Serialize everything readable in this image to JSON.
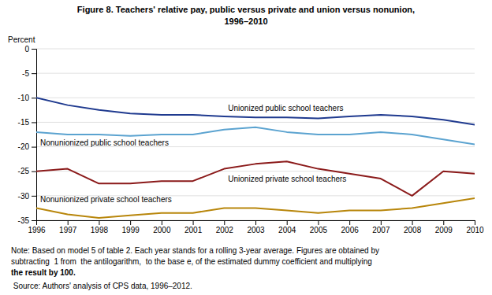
{
  "chart_data": {
    "type": "line",
    "title": [
      "Figure 8. Teachers' relative pay, public versus private and union versus nonunion,",
      "1996–2010"
    ],
    "ylabel": "Percent",
    "x": [
      1996,
      1997,
      1998,
      1999,
      2000,
      2001,
      2002,
      2003,
      2004,
      2005,
      2006,
      2007,
      2008,
      2009,
      2010
    ],
    "series": [
      {
        "name": "Unionized public school teachers",
        "color": "#1F3A8F",
        "values": [
          -10.0,
          -11.5,
          -12.5,
          -13.2,
          -13.5,
          -13.5,
          -13.8,
          -14.0,
          -14.0,
          -14.2,
          -13.8,
          -13.5,
          -13.8,
          -14.5,
          -15.5
        ]
      },
      {
        "name": "Nonunionized public school teachers",
        "color": "#5BA3D0",
        "values": [
          -17.0,
          -17.5,
          -17.5,
          -17.8,
          -17.5,
          -17.5,
          -16.5,
          -16.0,
          -17.0,
          -17.5,
          -17.5,
          -17.0,
          -17.5,
          -18.5,
          -19.5
        ]
      },
      {
        "name": "Unionized private school teachers",
        "color": "#8B1A1A",
        "values": [
          -25.0,
          -24.5,
          -27.5,
          -27.5,
          -27.0,
          -27.0,
          -24.5,
          -23.5,
          -23.0,
          -24.5,
          -25.5,
          -26.5,
          -30.0,
          -25.0,
          -25.5
        ]
      },
      {
        "name": "Nonunionized private school teachers",
        "color": "#B8860B",
        "values": [
          -32.5,
          -33.8,
          -34.5,
          -34.0,
          -33.5,
          -33.5,
          -32.5,
          -32.5,
          -33.0,
          -33.5,
          -33.0,
          -33.0,
          -32.5,
          -31.5,
          -30.5
        ]
      }
    ],
    "xlim": [
      1996,
      2010
    ],
    "xticks": [
      1996,
      1997,
      1998,
      1999,
      2000,
      2001,
      2002,
      2003,
      2004,
      2005,
      2006,
      2007,
      2008,
      2009,
      2010
    ],
    "ylim": [
      -35,
      0
    ],
    "yticks": [
      0,
      -5,
      -10,
      -15,
      -20,
      -25,
      -30,
      -35
    ],
    "grid": true,
    "annotations": [
      "Note: Based on model 5 of table 2. Each year stands for a rolling 3-year average. Figures are obtained by",
      "subtracting  1 from  the antilogarithm,  to the base e, of the estimated dummy coefficient and multiplying",
      "the result by 100.",
      " Source: Authors' analysis of CPS data, 1996–2012."
    ]
  }
}
